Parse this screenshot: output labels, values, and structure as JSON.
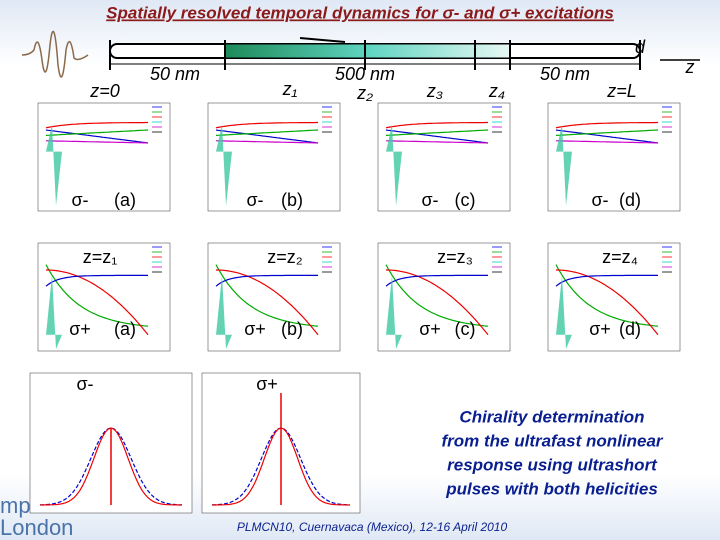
{
  "header": {
    "title": "Spatially resolved temporal dynamics for σ- and σ+ excitations"
  },
  "diagram": {
    "labels": [
      "z=0",
      "50 nm",
      "z₁",
      "500 nm",
      "z₂",
      "z₃",
      "z₄",
      "50 nm",
      "z=L",
      "d",
      "z"
    ]
  },
  "panels": [
    {
      "excitation": "σ-",
      "tag": "(a)"
    },
    {
      "excitation": "σ-",
      "tag": "(b)"
    },
    {
      "excitation": "σ-",
      "tag": "(c)"
    },
    {
      "excitation": "σ-",
      "tag": "(d)"
    },
    {
      "excitation": "σ+",
      "tag": "(a)"
    },
    {
      "excitation": "σ+",
      "tag": "(b)"
    },
    {
      "excitation": "σ+",
      "tag": "(c)"
    },
    {
      "excitation": "σ+",
      "tag": "(d)"
    }
  ],
  "positions": [
    "z=z₁",
    "z=z₂",
    "z=z₃",
    "z=z₄"
  ],
  "spectra": [
    "σ-",
    "σ+"
  ],
  "note": [
    "Chirality determination",
    "from the ultrafast nonlinear",
    "response using ultrashort",
    "pulses with both helicities"
  ],
  "footer": "PLMCN10, Cuernavaca (Mexico), 12-16 April 2010",
  "logo": [
    "mp",
    "London"
  ]
}
